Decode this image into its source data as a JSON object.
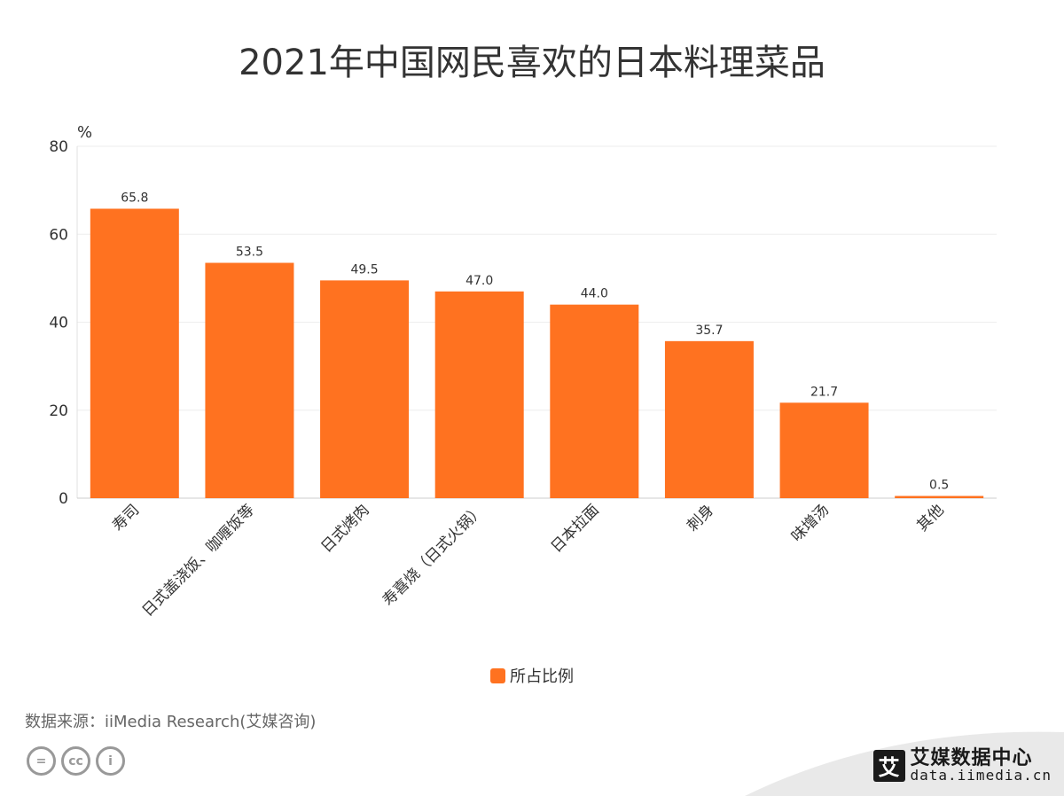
{
  "chart_data": {
    "type": "bar",
    "title": "2021年中国网民喜欢的日本料理菜品",
    "ylabel": "%",
    "ylim": [
      0,
      80
    ],
    "yticks": [
      0,
      20,
      40,
      60,
      80
    ],
    "categories": [
      "寿司",
      "日式盖浇饭、咖喱饭等",
      "日式烤肉",
      "寿喜烧（日式火锅）",
      "日本拉面",
      "刺身",
      "味增汤",
      "其他"
    ],
    "series": [
      {
        "name": "所占比例",
        "values": [
          65.8,
          53.5,
          49.5,
          47.0,
          44.0,
          35.7,
          21.7,
          0.5
        ]
      }
    ],
    "value_labels": [
      "65.8",
      "53.5",
      "49.5",
      "47.0",
      "44.0",
      "35.7",
      "21.7",
      "0.5"
    ],
    "grid": true,
    "legend_position": "bottom-center",
    "bar_color": "#ff7220"
  },
  "footer": {
    "source": "数据来源：iiMedia Research(艾媒咨询)",
    "brand_logo_char": "艾",
    "brand_name": "艾媒数据中心",
    "brand_url": "data.iimedia.cn",
    "cc_icons": [
      "=",
      "cc",
      "i"
    ]
  }
}
